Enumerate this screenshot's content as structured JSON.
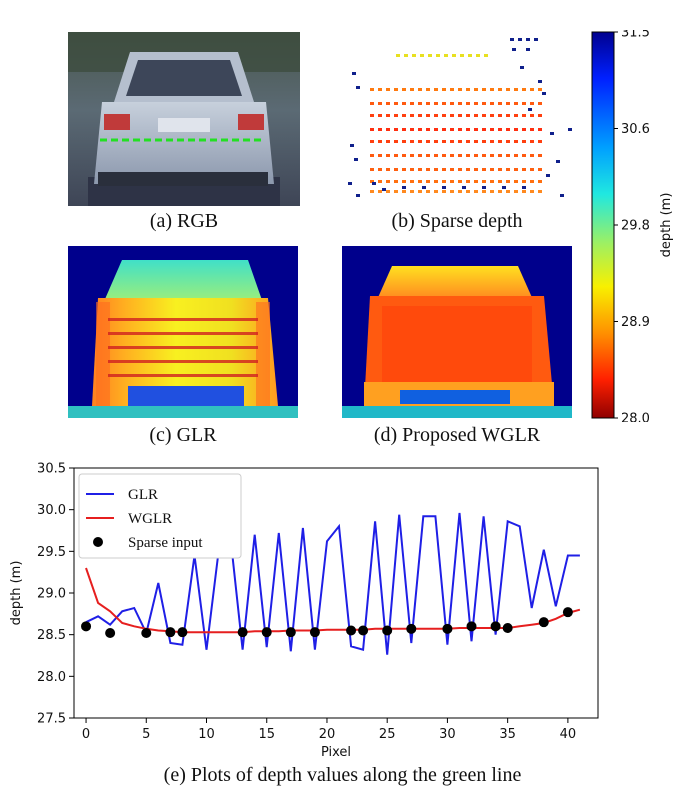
{
  "panels": [
    {
      "caption": "(a) RGB"
    },
    {
      "caption": "(b) Sparse depth"
    },
    {
      "caption": "(c) GLR"
    },
    {
      "caption": "(d) Proposed WGLR"
    }
  ],
  "colorbar": {
    "label": "depth (m)",
    "ticks": [
      "31.5",
      "30.6",
      "29.8",
      "28.9",
      "28.0"
    ],
    "colormap": [
      "#0000a0",
      "#0040ff",
      "#00b0ff",
      "#20e0d0",
      "#80f080",
      "#f0f000",
      "#ff9000",
      "#ff3000",
      "#a00000"
    ]
  },
  "figure_caption": "(e) Plots of depth values along the green line",
  "chart_data": {
    "type": "line",
    "xlabel": "Pixel",
    "ylabel": "depth (m)",
    "xlim": [
      -1,
      42.5
    ],
    "ylim": [
      27.5,
      30.5
    ],
    "xticks": [
      "0",
      "5",
      "10",
      "15",
      "20",
      "25",
      "30",
      "35",
      "40"
    ],
    "yticks": [
      "27.5",
      "28.0",
      "28.5",
      "29.0",
      "29.5",
      "30.0",
      "30.5"
    ],
    "legend_position": "upper-left",
    "series": [
      {
        "name": "GLR",
        "color": "#1f1fe6",
        "x": [
          0,
          1,
          2,
          3,
          4,
          5,
          6,
          7,
          8,
          9,
          10,
          11,
          12,
          13,
          14,
          15,
          16,
          17,
          18,
          19,
          20,
          21,
          22,
          23,
          24,
          25,
          26,
          27,
          28,
          29,
          30,
          31,
          32,
          33,
          34,
          35,
          36,
          37,
          38,
          39,
          40,
          41
        ],
        "y": [
          28.65,
          28.72,
          28.62,
          28.78,
          28.82,
          28.52,
          29.12,
          28.4,
          28.38,
          29.45,
          28.32,
          29.5,
          29.65,
          28.32,
          29.7,
          28.35,
          29.72,
          28.3,
          29.78,
          28.32,
          29.62,
          29.8,
          28.36,
          28.32,
          29.86,
          28.26,
          29.94,
          28.4,
          29.92,
          29.92,
          28.38,
          29.96,
          28.42,
          29.92,
          28.5,
          29.86,
          29.8,
          28.82,
          29.52,
          28.84,
          29.45,
          29.45
        ]
      },
      {
        "name": "WGLR",
        "color": "#e61f1f",
        "x": [
          0,
          1,
          2,
          3,
          4,
          5,
          6,
          7,
          8,
          9,
          10,
          11,
          12,
          13,
          14,
          15,
          16,
          17,
          18,
          19,
          20,
          21,
          22,
          23,
          24,
          25,
          26,
          27,
          28,
          29,
          30,
          31,
          32,
          33,
          34,
          35,
          36,
          37,
          38,
          39,
          40,
          41
        ],
        "y": [
          29.3,
          28.88,
          28.78,
          28.64,
          28.6,
          28.57,
          28.55,
          28.54,
          28.53,
          28.53,
          28.53,
          28.53,
          28.53,
          28.53,
          28.54,
          28.54,
          28.54,
          28.55,
          28.55,
          28.55,
          28.56,
          28.56,
          28.56,
          28.56,
          28.57,
          28.57,
          28.57,
          28.57,
          28.57,
          28.57,
          28.57,
          28.58,
          28.58,
          28.58,
          28.58,
          28.58,
          28.6,
          28.62,
          28.64,
          28.69,
          28.76,
          28.8
        ]
      },
      {
        "name": "Sparse input",
        "color": "#000000",
        "x": [
          0,
          2,
          5,
          7,
          8,
          13,
          15,
          17,
          19,
          22,
          23,
          25,
          27,
          30,
          32,
          34,
          35,
          38,
          40
        ],
        "y": [
          28.6,
          28.52,
          28.52,
          28.53,
          28.53,
          28.53,
          28.53,
          28.53,
          28.53,
          28.55,
          28.55,
          28.55,
          28.57,
          28.57,
          28.6,
          28.6,
          28.58,
          28.65,
          28.77
        ]
      }
    ]
  }
}
